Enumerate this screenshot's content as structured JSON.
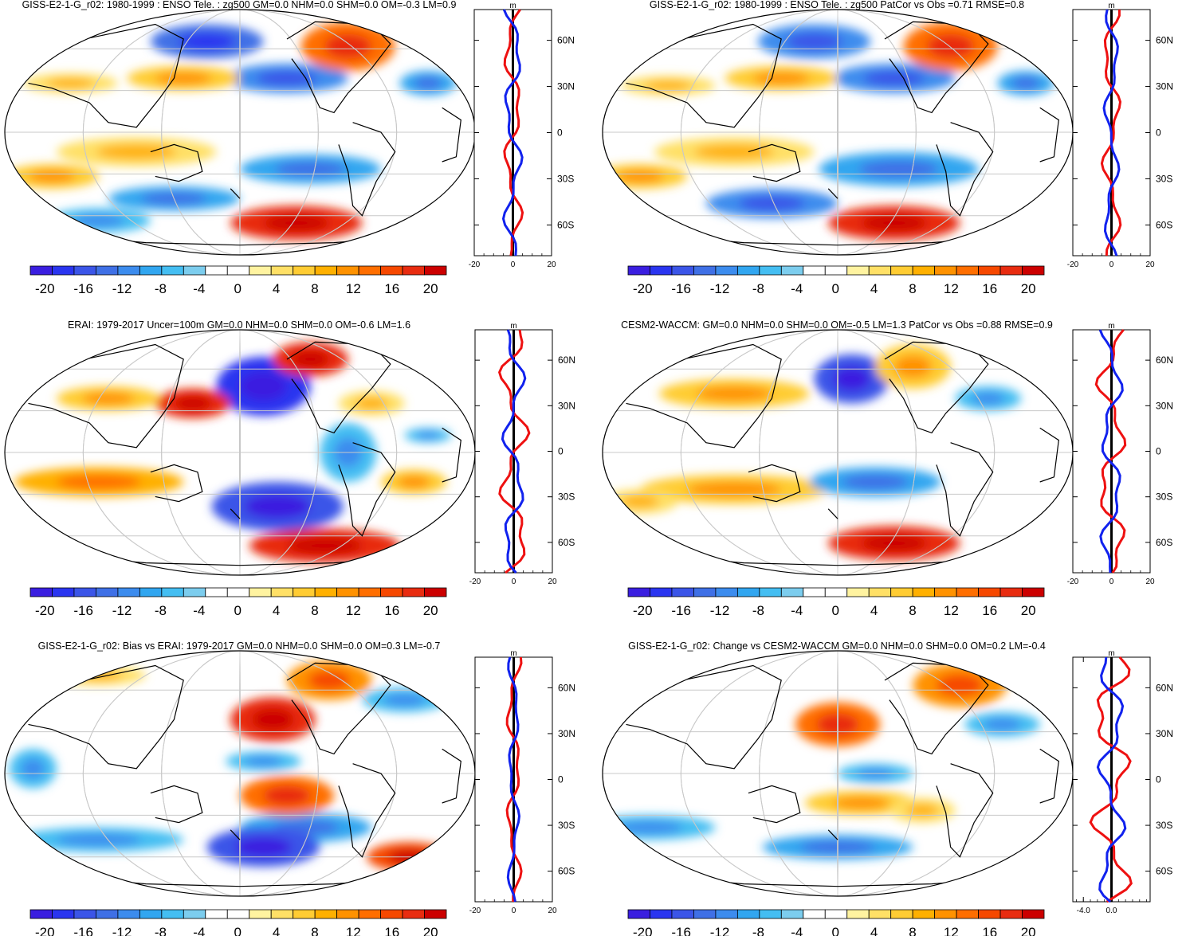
{
  "colormap": [
    "#3a1ee0",
    "#2a35f0",
    "#3b55e8",
    "#3f70e6",
    "#3c8cee",
    "#31a6f0",
    "#44bef2",
    "#7ccdee",
    "#ffffff",
    "#ffffff",
    "#fff3a0",
    "#ffe066",
    "#ffcc33",
    "#ffb000",
    "#ff9200",
    "#ff6e00",
    "#f64800",
    "#e82c10",
    "#cc0000"
  ],
  "colorbar_labels": [
    "-20",
    "-16",
    "-12",
    "-8",
    "-4",
    "0",
    "4",
    "8",
    "12",
    "16",
    "20"
  ],
  "zonal_unit": "m",
  "lat_labels": [
    "60N",
    "30N",
    "0",
    "30S",
    "60S"
  ],
  "panels": [
    {
      "title": "GISS-E2-1-G_r02: 1980-1999 : ENSO Tele. : zg500 GM=0.0 NHM=0.0 SHM=0.0 OM=-0.3 LM=0.9",
      "zonal_xticks": [
        "-20",
        "0",
        "20"
      ]
    },
    {
      "title": "GISS-E2-1-G_r02: 1980-1999 : ENSO Tele. : zg500 PatCor vs Obs =0.71 RMSE=0.8",
      "zonal_xticks": [
        "-20",
        "0",
        "20"
      ]
    },
    {
      "title": "ERAI: 1979-2017 Uncer=100m GM=0.0 NHM=0.0 SHM=0.0 OM=-0.6 LM=1.6",
      "zonal_xticks": [
        "-20",
        "0",
        "20"
      ]
    },
    {
      "title": "CESM2-WACCM: GM=0.0 NHM=0.0 SHM=0.0 OM=-0.5 LM=1.3 PatCor vs Obs =0.88 RMSE=0.9",
      "zonal_xticks": [
        "-20",
        "0",
        "20"
      ]
    },
    {
      "title": "GISS-E2-1-G_r02: Bias vs ERAI: 1979-2017 GM=0.0 NHM=0.0 SHM=0.0 OM=0.3 LM=-0.7",
      "zonal_xticks": [
        "-20",
        "0",
        "20"
      ]
    },
    {
      "title": "GISS-E2-1-G_r02: Change vs CESM2-WACCM GM=0.0 NHM=0.0 SHM=0.0 OM=0.2 LM=-0.4",
      "zonal_xticks": [
        "-4.0",
        "0.0"
      ]
    }
  ]
}
